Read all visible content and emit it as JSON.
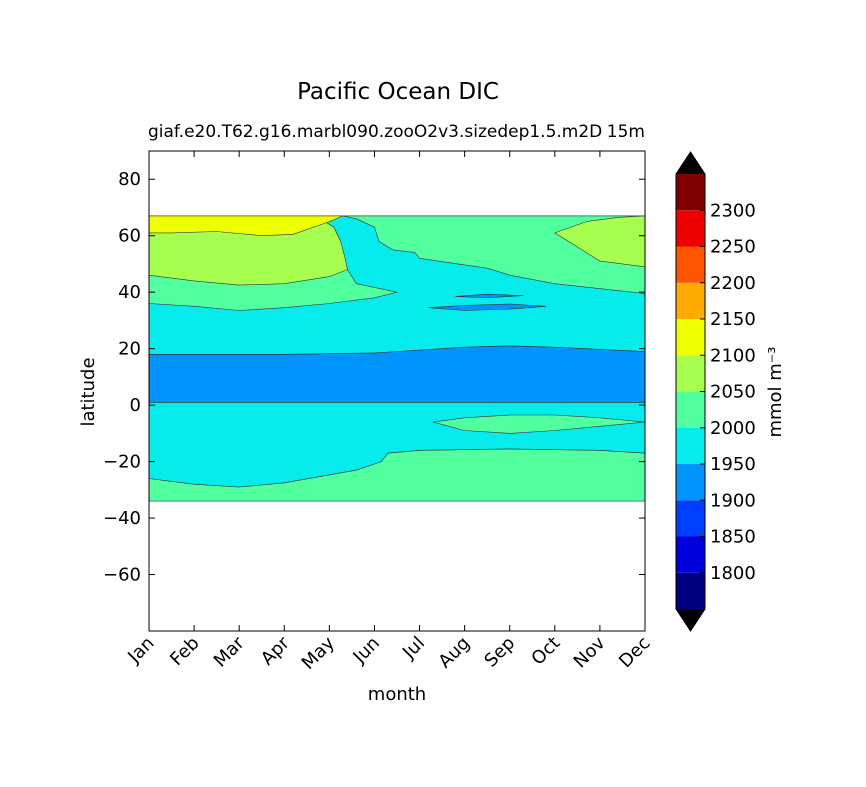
{
  "chart_data": {
    "type": "contourf",
    "title": "Pacific Ocean DIC",
    "subtitle_left": "giaf.e20.T62.g16.marbl090.zooO2v3.sizedep1.5.m2D",
    "subtitle_right": "15m",
    "xlabel": "month",
    "ylabel": "latitude",
    "x_categories": [
      "Jan",
      "Feb",
      "Mar",
      "Apr",
      "May",
      "Jun",
      "Jul",
      "Aug",
      "Sep",
      "Oct",
      "Nov",
      "Dec"
    ],
    "xlim": [
      0,
      11
    ],
    "ylim": [
      -80,
      90
    ],
    "yticks": [
      80,
      60,
      40,
      20,
      0,
      -20,
      -40,
      -60
    ],
    "ytick_labels": [
      "80",
      "60",
      "40",
      "20",
      "0",
      "−20",
      "−40",
      "−60"
    ],
    "data_lat_range": [
      -34,
      67
    ],
    "colorbar": {
      "label": "mmol m⁻³",
      "tick_values": [
        1800,
        1850,
        1900,
        1950,
        2000,
        2050,
        2100,
        2150,
        2200,
        2250,
        2300
      ],
      "tick_labels": [
        "1800",
        "1850",
        "1900",
        "1950",
        "2000",
        "2050",
        "2100",
        "2150",
        "2200",
        "2250",
        "2300"
      ],
      "levels": [
        1750,
        1800,
        1850,
        1900,
        1950,
        2000,
        2050,
        2100,
        2150,
        2200,
        2250,
        2300,
        2350
      ],
      "band_colors": [
        "#000080",
        "#0000dd",
        "#0040ff",
        "#0094ff",
        "#06ecec",
        "#52ff9e",
        "#a6ff4f",
        "#eeff00",
        "#ffaa00",
        "#ff5500",
        "#ee0000",
        "#800000"
      ],
      "under_color": "#000000",
      "over_color": "#000000"
    },
    "regions": [
      {
        "name": "band-2000-2050-south",
        "band": "2000-2050",
        "color": "#52ff9e",
        "points": [
          [
            0,
            -34
          ],
          [
            11,
            -34
          ],
          [
            11,
            -17
          ],
          [
            10,
            -16
          ],
          [
            8,
            -15.5
          ],
          [
            6,
            -16
          ],
          [
            5.3,
            -17
          ],
          [
            5.15,
            -20
          ],
          [
            4.6,
            -23
          ],
          [
            3.0,
            -27.5
          ],
          [
            2.0,
            -29
          ],
          [
            1.0,
            -28
          ],
          [
            0,
            -26
          ]
        ]
      },
      {
        "name": "band-1950-2000-south",
        "band": "1950-2000",
        "color": "#06ecec",
        "points": [
          [
            0,
            -26
          ],
          [
            1.0,
            -28
          ],
          [
            2.0,
            -29
          ],
          [
            3.0,
            -27.5
          ],
          [
            4.6,
            -23
          ],
          [
            5.15,
            -20
          ],
          [
            5.3,
            -17
          ],
          [
            6,
            -16
          ],
          [
            8,
            -15.5
          ],
          [
            10,
            -16
          ],
          [
            11,
            -17
          ],
          [
            11,
            1
          ],
          [
            0,
            1
          ]
        ]
      },
      {
        "name": "band-2000-2050-equatorial-patch",
        "band": "2000-2050",
        "color": "#52ff9e",
        "points": [
          [
            6.3,
            -6
          ],
          [
            7,
            -4.5
          ],
          [
            8,
            -3.5
          ],
          [
            9,
            -3.5
          ],
          [
            10,
            -4.5
          ],
          [
            11,
            -6
          ],
          [
            10,
            -7.5
          ],
          [
            9,
            -9
          ],
          [
            8,
            -10
          ],
          [
            7,
            -9
          ],
          [
            6.3,
            -6
          ]
        ]
      },
      {
        "name": "band-1900-1950-equatorial",
        "band": "1900-1950",
        "color": "#0094ff",
        "points": [
          [
            0,
            1
          ],
          [
            11,
            1
          ],
          [
            11,
            19
          ],
          [
            9,
            20.5
          ],
          [
            8,
            21
          ],
          [
            7,
            20.5
          ],
          [
            5,
            18.5
          ],
          [
            3,
            18
          ],
          [
            0,
            18
          ]
        ]
      },
      {
        "name": "band-1950-2000-north",
        "band": "1950-2000",
        "color": "#06ecec",
        "points": [
          [
            0,
            18
          ],
          [
            3,
            18
          ],
          [
            5,
            18.5
          ],
          [
            7,
            20.5
          ],
          [
            8,
            21
          ],
          [
            9,
            20.5
          ],
          [
            11,
            19
          ],
          [
            11,
            67
          ],
          [
            0,
            67
          ]
        ]
      },
      {
        "name": "band-1900-1950-north-patch",
        "band": "1900-1950",
        "color": "#0094ff",
        "points": [
          [
            6.2,
            34.5
          ],
          [
            7,
            35.3
          ],
          [
            8,
            35.8
          ],
          [
            8.8,
            35
          ],
          [
            8,
            34
          ],
          [
            7,
            33.5
          ],
          [
            6.2,
            34.5
          ]
        ]
      },
      {
        "name": "band-1900-1950-north-patch-small",
        "band": "1900-1950",
        "color": "#0094ff",
        "points": [
          [
            6.8,
            38.5
          ],
          [
            7.5,
            39.3
          ],
          [
            8.3,
            38.8
          ],
          [
            7.5,
            38
          ],
          [
            6.8,
            38.5
          ]
        ]
      },
      {
        "name": "band-2000-2050-north",
        "band": "2000-2050",
        "color": "#52ff9e",
        "points": [
          [
            0,
            67
          ],
          [
            11,
            67
          ],
          [
            11,
            39.5
          ],
          [
            9,
            43
          ],
          [
            8,
            46
          ],
          [
            7.5,
            48.5
          ],
          [
            6,
            52
          ],
          [
            5.9,
            54
          ],
          [
            5.4,
            55
          ],
          [
            5.1,
            58
          ],
          [
            5,
            63
          ],
          [
            4.6,
            66
          ],
          [
            4.3,
            67
          ],
          [
            0,
            67
          ],
          [
            0,
            36
          ],
          [
            1,
            35
          ],
          [
            2,
            33.5
          ],
          [
            3,
            34.5
          ],
          [
            4,
            36
          ],
          [
            5,
            38
          ],
          [
            5.5,
            40
          ],
          [
            4.6,
            43
          ],
          [
            4.4,
            48
          ],
          [
            4.3,
            52
          ],
          [
            4.25,
            58
          ],
          [
            4.1,
            63
          ],
          [
            3.7,
            67
          ],
          [
            0,
            67
          ]
        ]
      },
      {
        "name": "band-2050-2100-north-west",
        "band": "2050-2100",
        "color": "#a6ff4f",
        "points": [
          [
            0,
            46
          ],
          [
            1,
            44
          ],
          [
            2,
            42.5
          ],
          [
            3,
            43
          ],
          [
            4,
            45.5
          ],
          [
            4.4,
            48
          ],
          [
            4.35,
            52
          ],
          [
            4.25,
            58
          ],
          [
            4.1,
            63
          ],
          [
            3.7,
            67
          ],
          [
            0,
            67
          ]
        ]
      },
      {
        "name": "band-2050-2100-north-east",
        "band": "2050-2100",
        "color": "#a6ff4f",
        "points": [
          [
            11,
            49
          ],
          [
            10,
            51
          ],
          [
            9.5,
            56
          ],
          [
            9,
            61
          ],
          [
            9.7,
            65
          ],
          [
            10.4,
            66.5
          ],
          [
            11,
            67
          ]
        ]
      },
      {
        "name": "band-2100-2150-north",
        "band": "2100-2150",
        "color": "#eeff00",
        "points": [
          [
            0,
            67
          ],
          [
            4.3,
            67
          ],
          [
            4.0,
            65
          ],
          [
            3.2,
            60.5
          ],
          [
            2.5,
            60
          ],
          [
            1.5,
            61.5
          ],
          [
            0.5,
            61
          ],
          [
            0,
            61
          ]
        ]
      }
    ]
  }
}
